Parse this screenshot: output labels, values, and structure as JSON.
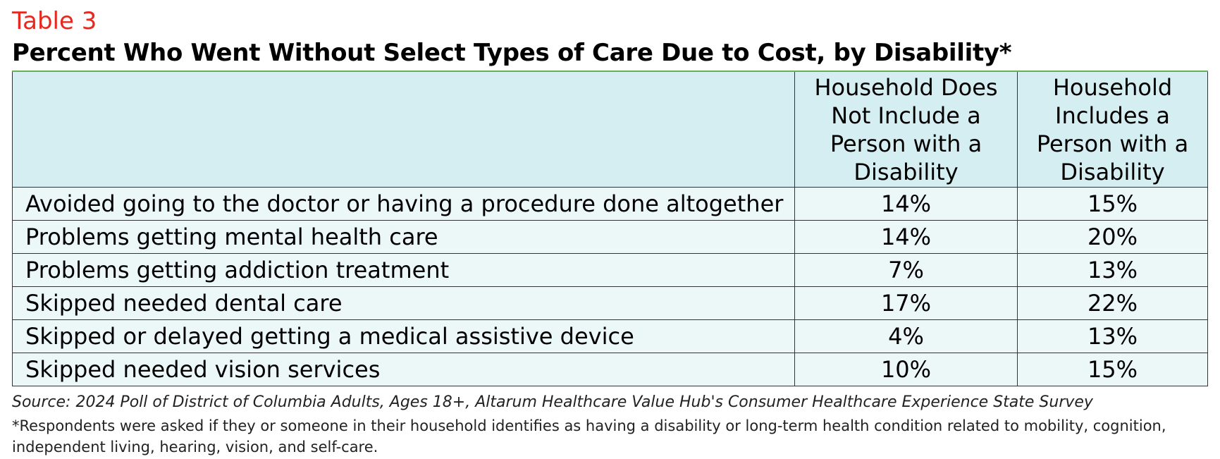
{
  "label": "Table 3",
  "title": "Percent Who Went Without Select Types of Care Due to Cost, by Disability*",
  "table": {
    "columns": [
      "",
      "Household Does Not Include a Person with a Disability",
      "Household Includes a Person with a Disability"
    ],
    "rows": [
      [
        "Avoided going to the doctor or having a procedure done altogether",
        "14%",
        "15%"
      ],
      [
        "Problems getting mental health care",
        "14%",
        "20%"
      ],
      [
        "Problems getting addiction treatment",
        "7%",
        "13%"
      ],
      [
        "Skipped needed dental care",
        "17%",
        "22%"
      ],
      [
        "Skipped or delayed getting a medical assistive device",
        "4%",
        "13%"
      ],
      [
        "Skipped needed vision services",
        "10%",
        "15%"
      ]
    ]
  },
  "source": "Source: 2024 Poll of District of Columbia Adults, Ages 18+, Altarum Healthcare Value Hub's Consumer Healthcare Experience State Survey",
  "footnote": "*Respondents were asked if they or someone in their household identifies as having a disability or long-term health condition related to mobility, cognition, independent living, hearing, vision, and self-care."
}
